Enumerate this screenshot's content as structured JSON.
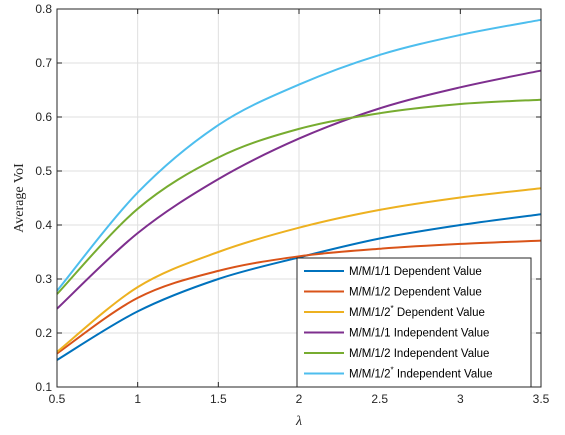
{
  "chart_data": {
    "type": "line",
    "title": "",
    "xlabel": "λ",
    "ylabel": "Average VoI",
    "xlim": [
      0.5,
      3.5
    ],
    "ylim": [
      0.1,
      0.8
    ],
    "xticks": [
      "0.5",
      "1",
      "1.5",
      "2",
      "2.5",
      "3",
      "3.5"
    ],
    "yticks": [
      "0.1",
      "0.2",
      "0.3",
      "0.4",
      "0.5",
      "0.6",
      "0.7",
      "0.8"
    ],
    "grid": true,
    "legend_position": "bottom-right",
    "x": [
      0.5,
      1.0,
      1.5,
      2.0,
      2.5,
      3.0,
      3.5
    ],
    "series": [
      {
        "name": "M/M/1/1 Dependent Value",
        "sup": "",
        "color": "#0072BD",
        "values": [
          0.15,
          0.24,
          0.3,
          0.34,
          0.375,
          0.4,
          0.42
        ]
      },
      {
        "name": "M/M/1/2 Dependent Value",
        "sup": "",
        "color": "#D95319",
        "values": [
          0.162,
          0.265,
          0.315,
          0.342,
          0.356,
          0.365,
          0.371
        ]
      },
      {
        "name": "M/M/1/2",
        "sup": "*",
        "suffix": " Dependent Value",
        "color": "#EDB120",
        "values": [
          0.165,
          0.285,
          0.35,
          0.395,
          0.428,
          0.451,
          0.468
        ]
      },
      {
        "name": "M/M/1/1 Independent Value",
        "sup": "",
        "color": "#7E2F8E",
        "values": [
          0.245,
          0.385,
          0.485,
          0.56,
          0.616,
          0.655,
          0.686
        ]
      },
      {
        "name": "M/M/1/2 Independent Value",
        "sup": "",
        "color": "#77AC30",
        "values": [
          0.272,
          0.43,
          0.525,
          0.578,
          0.607,
          0.624,
          0.632
        ]
      },
      {
        "name": "M/M/1/2",
        "sup": "*",
        "suffix": " Independent Value",
        "color": "#4DBEEE",
        "values": [
          0.278,
          0.46,
          0.585,
          0.66,
          0.715,
          0.752,
          0.78
        ]
      }
    ]
  }
}
